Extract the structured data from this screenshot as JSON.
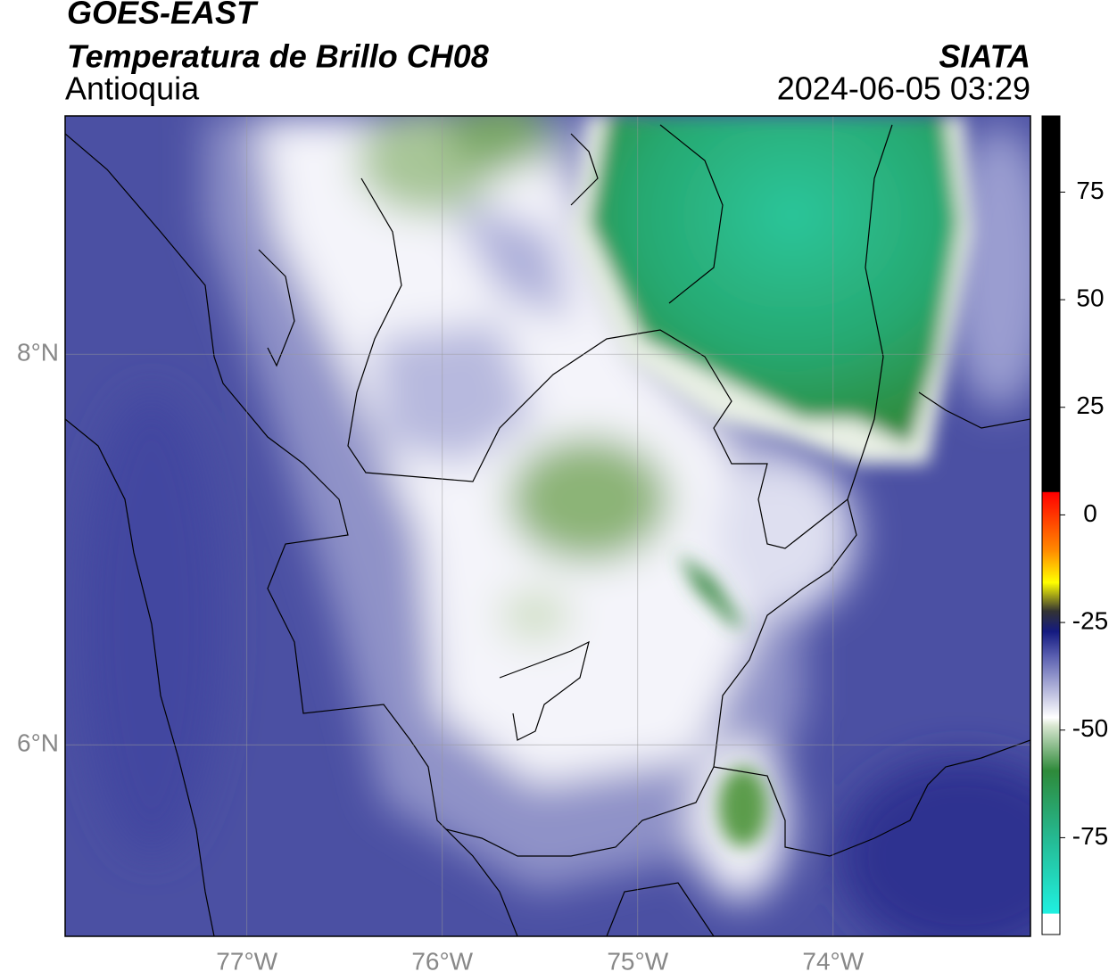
{
  "header": {
    "satellite": "GOES-EAST",
    "product": "Temperatura de Brillo CH08",
    "region": "Antioquia",
    "source": "SIATA",
    "datetime": "2024-06-05 03:29"
  },
  "map": {
    "xlim": [
      -77.93,
      -72.99
    ],
    "ylim": [
      5.02,
      9.22
    ],
    "xticks": [
      {
        "value": -77,
        "label": "77°W"
      },
      {
        "value": -76,
        "label": "76°W"
      },
      {
        "value": -75,
        "label": "75°W"
      },
      {
        "value": -74,
        "label": "74°W"
      }
    ],
    "yticks": [
      {
        "value": 8,
        "label": "8°N"
      },
      {
        "value": 6,
        "label": "6°N"
      }
    ],
    "grid": true
  },
  "colorbar": {
    "ylim": [
      -97.5,
      92.7
    ],
    "yticks": [
      75,
      50,
      25,
      0,
      -25,
      -50,
      -75
    ]
  }
}
